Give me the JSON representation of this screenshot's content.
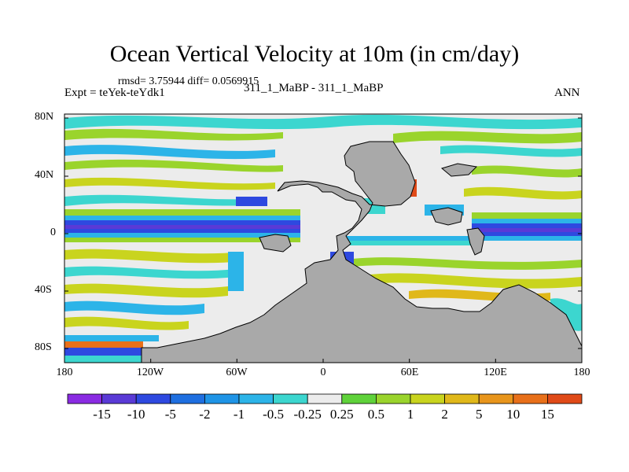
{
  "header": {
    "title": "Ocean Vertical Velocity at 10m (in cm/day)",
    "rmsd_line": "rmsd= 3.75944 diff= 0.0569915",
    "left_label": "Expt = teYek-teYdk1",
    "center_label": "311_1_MaBP - 311_1_MaBP",
    "right_label": "ANN"
  },
  "axes": {
    "x_ticks": [
      "180",
      "120W",
      "60W",
      "0",
      "60E",
      "120E",
      "180"
    ],
    "y_ticks": [
      "80N",
      "40N",
      "0",
      "40S",
      "80S"
    ]
  },
  "colorbar": {
    "labels": [
      "-15",
      "-10",
      "-5",
      "-2",
      "-1",
      "-0.5",
      "-0.25",
      "0.25",
      "0.5",
      "1",
      "2",
      "5",
      "10",
      "15"
    ],
    "colors": [
      "#8a2be2",
      "#5a3ad6",
      "#2e49e0",
      "#1f6fe0",
      "#1f94e6",
      "#2cb4e8",
      "#3cd6cf",
      "#ececec",
      "#5fd23a",
      "#9ad42c",
      "#c9d41e",
      "#e0b81a",
      "#e8951c",
      "#e8701a",
      "#e04a18"
    ]
  },
  "colors": {
    "land": "#a9a9a9",
    "ocean_bg": "#ececec"
  }
}
